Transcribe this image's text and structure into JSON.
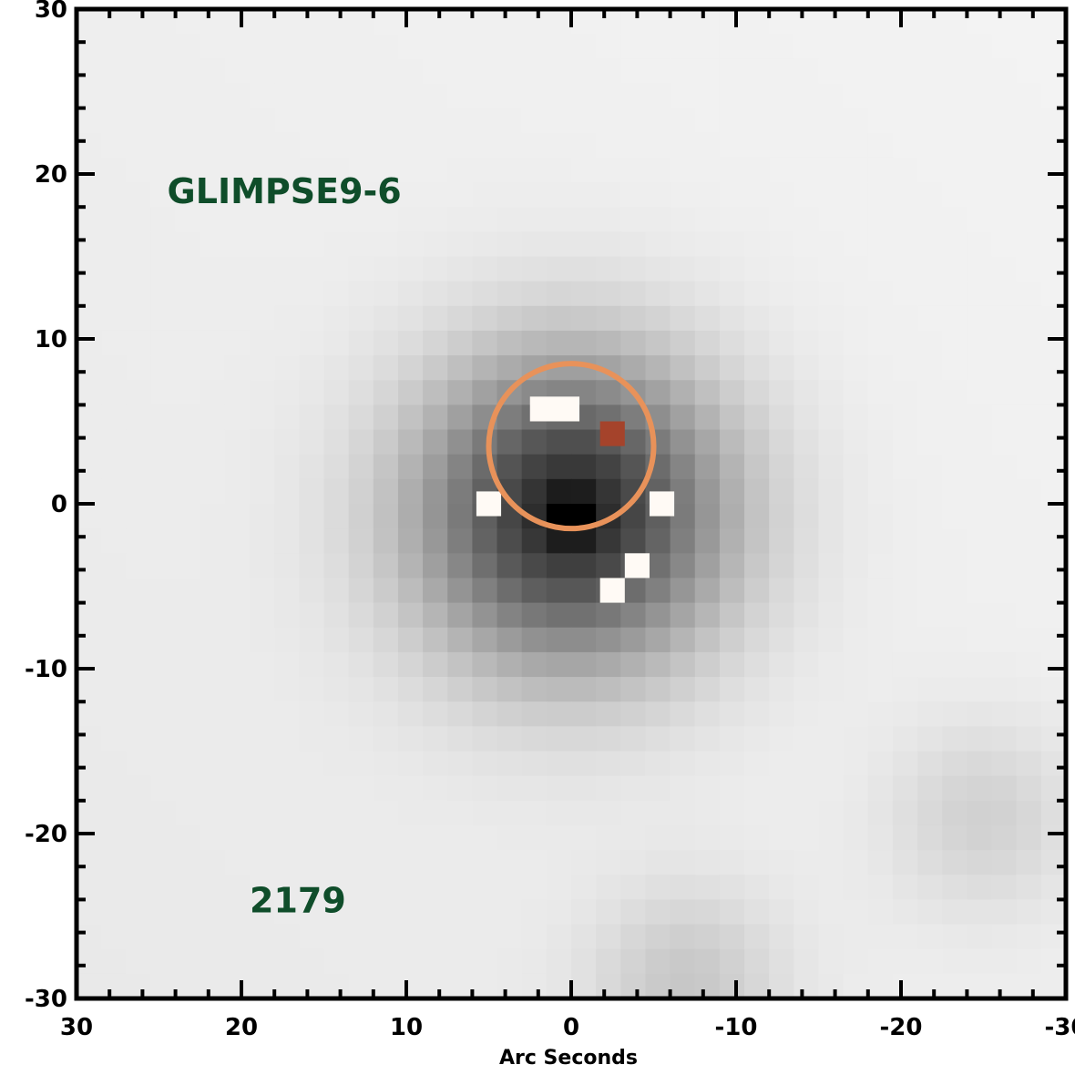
{
  "chart_data": {
    "type": "heatmap",
    "title": "",
    "xlabel": "Arc Seconds",
    "ylabel": "",
    "xlim": [
      30,
      -30
    ],
    "ylim": [
      -30,
      30
    ],
    "xticks": [
      30,
      20,
      10,
      0,
      -10,
      -20,
      -30
    ],
    "yticks": [
      30,
      20,
      10,
      0,
      -10,
      -20,
      -30
    ],
    "xtick_labels": [
      "30",
      "20",
      "10",
      "0",
      "-10",
      "-20",
      "-30"
    ],
    "ytick_labels": [
      "30",
      "20",
      "10",
      "0",
      "-10",
      "-20",
      "-30"
    ],
    "grid": false,
    "colormap": "inverted grayscale",
    "sources": [
      {
        "name": "main",
        "x": 0,
        "y": -0.5,
        "sigma": 6.5,
        "amplitude": 0.8
      },
      {
        "name": "faint-south-east",
        "x": -25,
        "y": -19,
        "sigma": 4,
        "amplitude": 0.12
      },
      {
        "name": "faint-south",
        "x": -7,
        "y": -29,
        "sigma": 4,
        "amplitude": 0.15
      }
    ],
    "saturated_pixels": [
      {
        "x": 1,
        "y": 5.75,
        "width_arcsec": 3,
        "color": "white"
      },
      {
        "x": -2.5,
        "y": 4.25,
        "width_arcsec": 1.5,
        "color": "red"
      },
      {
        "x": 5,
        "y": 0,
        "width_arcsec": 1.5,
        "color": "white"
      },
      {
        "x": -5.5,
        "y": 0,
        "width_arcsec": 1.5,
        "color": "white"
      },
      {
        "x": -4,
        "y": -3.75,
        "width_arcsec": 1.5,
        "color": "white"
      },
      {
        "x": -2.5,
        "y": -5.25,
        "width_arcsec": 1.5,
        "color": "white"
      }
    ],
    "circle": {
      "x": 0,
      "y": 3.5,
      "radius": 5,
      "color": "#e8925a"
    },
    "annotations": [
      {
        "text": "GLIMPSE9-6",
        "x": 24.5,
        "y": 19,
        "color": "#0f4d2a"
      },
      {
        "text": "2179",
        "x": 19.5,
        "y": -24,
        "color": "#0f4d2a"
      }
    ]
  },
  "colors": {
    "frame": "#000000",
    "annotation": "#0f4d2a",
    "circle": "#e8925a",
    "hot_pixel": "#a5432b",
    "background": "#ffffff"
  }
}
